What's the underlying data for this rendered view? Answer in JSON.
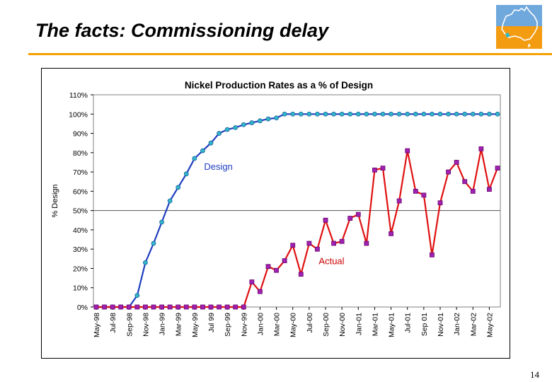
{
  "slide": {
    "title": "The facts: Commissioning delay",
    "page_number": "14"
  },
  "colors": {
    "accent_rule": "#f5a100",
    "design_line": "#1f3fbf",
    "design_marker": "#2fb7c9",
    "actual_line": "#e01010",
    "actual_marker": "#a020b0",
    "label_design": "#1f3fbf",
    "label_actual": "#cc0000"
  },
  "chart_data": {
    "type": "line",
    "title": "Nickel Production Rates as a % of Design",
    "xlabel": "",
    "ylabel": "% Design",
    "ylim": [
      0,
      110
    ],
    "yticks": [
      "0%",
      "10%",
      "20%",
      "30%",
      "40%",
      "50%",
      "60%",
      "70%",
      "80%",
      "90%",
      "100%",
      "110%"
    ],
    "reference_line": 50,
    "x_tick_labels": [
      "May-98",
      "Jul-98",
      "Sep-98",
      "Nov-98",
      "Jan-99",
      "Mar-99",
      "May-99",
      "Jul 99",
      "Sep-99",
      "Nov-99",
      "Jan-00",
      "Mar-00",
      "May-00",
      "Jul-00",
      "Sep-00",
      "Nov-00",
      "Jan-01",
      "Mar-01",
      "May-01",
      "Jul-01",
      "Sep 01",
      "Nov-01",
      "Jan-02",
      "Mar-02",
      "May-02"
    ],
    "annotations": [
      {
        "text": "Design",
        "x_index": 13,
        "y": 73
      },
      {
        "text": "Actual",
        "x_index": 27,
        "y": 24
      }
    ],
    "series": [
      {
        "name": "Design",
        "values": [
          0,
          0,
          0,
          0,
          0,
          6,
          23,
          33,
          44,
          55,
          62,
          69,
          77,
          81,
          85,
          90,
          92,
          93,
          94.5,
          95.5,
          96.5,
          97.5,
          98,
          100,
          100,
          100,
          100,
          100,
          100,
          100,
          100,
          100,
          100,
          100,
          100,
          100,
          100,
          100,
          100,
          100,
          100,
          100,
          100,
          100,
          100,
          100,
          100,
          100,
          100,
          100
        ]
      },
      {
        "name": "Actual",
        "values": [
          0,
          0,
          0,
          0,
          0,
          0,
          0,
          0,
          0,
          0,
          0,
          0,
          0,
          0,
          0,
          0,
          0,
          0,
          0,
          13,
          8,
          21,
          19,
          24,
          32,
          17,
          33,
          30,
          45,
          33,
          34,
          46,
          48,
          33,
          71,
          72,
          38,
          55,
          81,
          60,
          58,
          27,
          54,
          70,
          75,
          65,
          60,
          82,
          61,
          72
        ]
      }
    ]
  }
}
